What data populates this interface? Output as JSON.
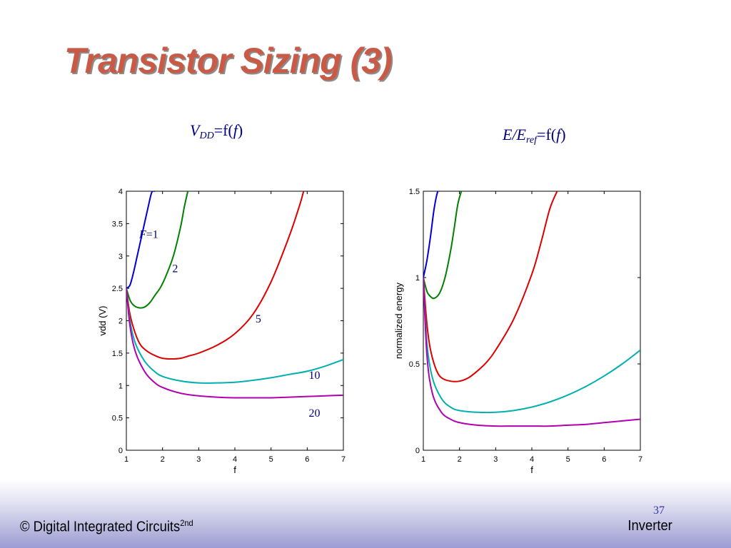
{
  "slide": {
    "title": "Transistor Sizing (3)",
    "subtitle_left": {
      "main": "V",
      "sub": "DD",
      "rest_a": "=f(",
      "arg": "f",
      "rest_b": ")"
    },
    "subtitle_right": {
      "main": "E/E",
      "sub": "ref",
      "rest_a": "=f(",
      "arg": "f",
      "rest_b": ")"
    },
    "footer_left": "© Digital Integrated Circuits",
    "footer_left_sup": "2nd",
    "footer_right": "Inverter",
    "page_number": "37"
  },
  "chart_data": [
    {
      "type": "line",
      "xlabel": "f",
      "ylabel": "vdd (V)",
      "xlim": [
        1,
        7
      ],
      "ylim": [
        0,
        4
      ],
      "xticks": [
        "1",
        "2",
        "3",
        "4",
        "5",
        "6",
        "7"
      ],
      "yticks": [
        "0",
        "0.5",
        "1",
        "1.5",
        "2",
        "2.5",
        "3",
        "3.5",
        "4"
      ],
      "grid": false,
      "series": [
        {
          "name": "F=1",
          "color": "#0000dd",
          "x": [
            1,
            1.1,
            1.2,
            1.3,
            1.4,
            1.5,
            1.6,
            1.7,
            1.78
          ],
          "y": [
            2.5,
            2.55,
            2.75,
            3.0,
            3.25,
            3.5,
            3.75,
            3.98,
            4.0
          ]
        },
        {
          "name": "2",
          "color": "#008000",
          "x": [
            1,
            1.1,
            1.2,
            1.35,
            1.5,
            1.65,
            1.8,
            1.95,
            2.1,
            2.3,
            2.5,
            2.6,
            2.7
          ],
          "y": [
            2.5,
            2.32,
            2.24,
            2.2,
            2.21,
            2.28,
            2.4,
            2.52,
            2.7,
            3.0,
            3.45,
            3.75,
            4.0
          ]
        },
        {
          "name": "5",
          "color": "#dd0000",
          "x": [
            1,
            1.1,
            1.25,
            1.4,
            1.6,
            1.8,
            2.0,
            2.25,
            2.5,
            2.75,
            3.0,
            3.5,
            4.0,
            4.5,
            5.0,
            5.5,
            5.8,
            5.9
          ],
          "y": [
            2.5,
            2.1,
            1.8,
            1.62,
            1.52,
            1.46,
            1.42,
            1.41,
            1.42,
            1.46,
            1.5,
            1.62,
            1.8,
            2.1,
            2.6,
            3.3,
            3.8,
            4.0
          ]
        },
        {
          "name": "10",
          "color": "#00b0b0",
          "x": [
            1,
            1.1,
            1.25,
            1.5,
            1.75,
            2.0,
            2.5,
            3.0,
            3.5,
            4.0,
            4.5,
            5.0,
            5.5,
            6.0,
            6.5,
            7.0
          ],
          "y": [
            2.5,
            2.0,
            1.65,
            1.38,
            1.23,
            1.14,
            1.07,
            1.04,
            1.04,
            1.05,
            1.08,
            1.12,
            1.17,
            1.22,
            1.3,
            1.4
          ]
        },
        {
          "name": "20",
          "color": "#b000b0",
          "x": [
            1,
            1.1,
            1.25,
            1.5,
            1.75,
            2.0,
            2.5,
            3.0,
            3.5,
            4.0,
            4.5,
            5.0,
            5.5,
            6.0,
            6.5,
            7.0
          ],
          "y": [
            2.5,
            1.92,
            1.52,
            1.22,
            1.06,
            0.97,
            0.88,
            0.84,
            0.82,
            0.81,
            0.81,
            0.81,
            0.82,
            0.83,
            0.84,
            0.85
          ]
        }
      ],
      "annotations": [
        {
          "text": "F=1",
          "x": 1.62,
          "y": 3.28
        },
        {
          "text": "2",
          "x": 2.35,
          "y": 2.75
        },
        {
          "text": "5",
          "x": 4.65,
          "y": 1.97
        },
        {
          "text": "10",
          "x": 6.2,
          "y": 1.1
        },
        {
          "text": "20",
          "x": 6.2,
          "y": 0.52
        }
      ]
    },
    {
      "type": "line",
      "xlabel": "f",
      "ylabel": "normalized energy",
      "xlim": [
        1,
        7
      ],
      "ylim": [
        0,
        1.5
      ],
      "xticks": [
        "1",
        "2",
        "3",
        "4",
        "5",
        "6",
        "7"
      ],
      "yticks": [
        "0",
        "0.5",
        "1",
        "1.5"
      ],
      "grid": false,
      "series": [
        {
          "name": "F=1",
          "color": "#0000dd",
          "x": [
            1,
            1.1,
            1.2,
            1.3,
            1.4,
            1.45
          ],
          "y": [
            1.0,
            1.1,
            1.24,
            1.4,
            1.5,
            1.5
          ]
        },
        {
          "name": "2",
          "color": "#008000",
          "x": [
            1,
            1.1,
            1.2,
            1.3,
            1.45,
            1.6,
            1.75,
            1.85,
            1.95,
            2.05
          ],
          "y": [
            1.0,
            0.92,
            0.89,
            0.88,
            0.91,
            1.0,
            1.15,
            1.28,
            1.42,
            1.5
          ]
        },
        {
          "name": "5",
          "color": "#dd0000",
          "x": [
            1,
            1.1,
            1.2,
            1.35,
            1.5,
            1.75,
            2.0,
            2.25,
            2.5,
            2.75,
            3.0,
            3.5,
            4.0,
            4.25,
            4.5,
            4.7
          ],
          "y": [
            1.0,
            0.73,
            0.58,
            0.47,
            0.42,
            0.4,
            0.4,
            0.42,
            0.46,
            0.51,
            0.58,
            0.76,
            1.02,
            1.2,
            1.4,
            1.5
          ]
        },
        {
          "name": "10",
          "color": "#00b0b0",
          "x": [
            1,
            1.1,
            1.25,
            1.5,
            1.75,
            2.0,
            2.5,
            3.0,
            3.5,
            4.0,
            4.5,
            5.0,
            5.5,
            6.0,
            6.5,
            7.0
          ],
          "y": [
            1.0,
            0.62,
            0.42,
            0.3,
            0.25,
            0.23,
            0.22,
            0.22,
            0.23,
            0.25,
            0.28,
            0.32,
            0.37,
            0.43,
            0.5,
            0.58
          ]
        },
        {
          "name": "20",
          "color": "#b000b0",
          "x": [
            1,
            1.1,
            1.25,
            1.5,
            1.75,
            2.0,
            2.5,
            3.0,
            3.5,
            4.0,
            4.5,
            5.0,
            5.5,
            6.0,
            6.5,
            7.0
          ],
          "y": [
            1.0,
            0.55,
            0.33,
            0.22,
            0.18,
            0.16,
            0.145,
            0.14,
            0.14,
            0.14,
            0.14,
            0.145,
            0.15,
            0.16,
            0.17,
            0.18
          ]
        }
      ],
      "annotations": []
    }
  ]
}
